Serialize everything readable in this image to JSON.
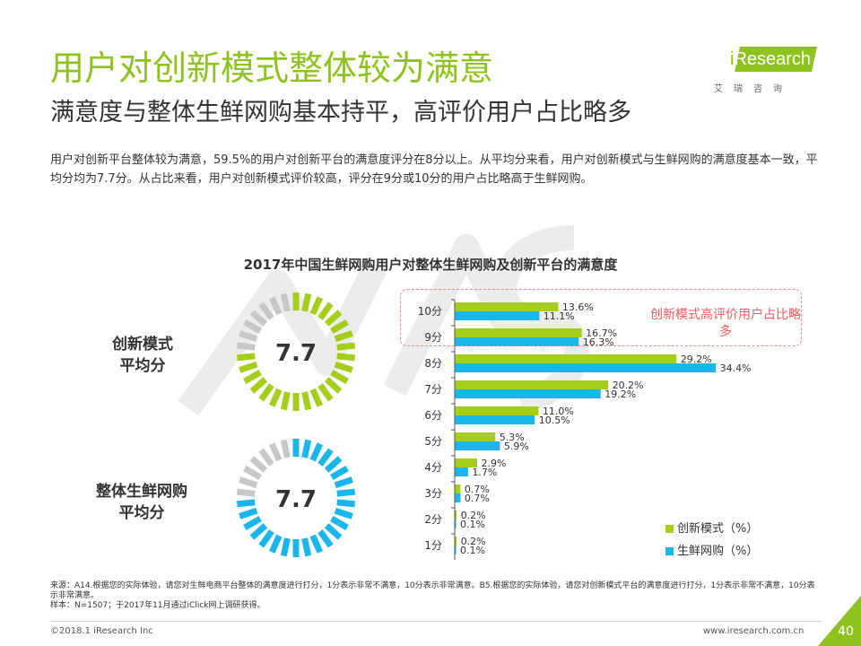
{
  "header": {
    "title": "用户对创新模式整体较为满意",
    "subtitle": "满意度与整体生鲜网购基本持平，高评价用户占比略多",
    "description": "用户对创新平台整体较为满意，59.5%的用户对创新平台的满意度评分在8分以上。从平均分来看，用户对创新模式与生鲜网购的满意度基本一致，平均分均为7.7分。从占比来看，用户对创新模式评价较高，评分在9分或10分的用户占比略高于生鲜网购。"
  },
  "logo": {
    "prefix": "i",
    "name": "Research",
    "tagline": "艾瑞咨询"
  },
  "colors": {
    "brand": "#8dc21f",
    "series1": "#a5cd1c",
    "series2": "#1bb6e9",
    "gauge_grey": "#c8c8c8",
    "callout": "#f15b5b"
  },
  "gauges": [
    {
      "label_line1": "创新模式",
      "label_line2": "平均分",
      "score_text": "7.7",
      "score": 7.7,
      "max": 10,
      "color": "#a5cd1c"
    },
    {
      "label_line1": "整体生鲜网购",
      "label_line2": "平均分",
      "score_text": "7.7",
      "score": 7.7,
      "max": 10,
      "color": "#1bb6e9"
    }
  ],
  "callout": "创新模式高评价用户占比略多",
  "chart_data": {
    "type": "bar",
    "orientation": "horizontal",
    "title": "2017年中国生鲜网购用户对整体生鲜网购及创新平台的满意度",
    "categories": [
      "10分",
      "9分",
      "8分",
      "7分",
      "6分",
      "5分",
      "4分",
      "3分",
      "2分",
      "1分"
    ],
    "series": [
      {
        "name": "创新模式（%）",
        "color": "#a5cd1c",
        "values": [
          13.6,
          16.7,
          29.2,
          20.2,
          11.0,
          5.3,
          2.9,
          0.7,
          0.2,
          0.2
        ],
        "labels": [
          "13.6%",
          "16.7%",
          "29.2%",
          "20.2%",
          "11.0%",
          "5.3%",
          "2.9%",
          "0.7%",
          "0.2%",
          "0.2%"
        ]
      },
      {
        "name": "生鲜网购（%）",
        "color": "#1bb6e9",
        "values": [
          11.1,
          16.3,
          34.4,
          19.2,
          10.5,
          5.9,
          1.7,
          0.7,
          0.1,
          0.1
        ],
        "labels": [
          "11.1%",
          "16.3%",
          "34.4%",
          "19.2%",
          "10.5%",
          "5.9%",
          "1.7%",
          "0.7%",
          "0.1%",
          "0.1%"
        ]
      }
    ],
    "legend_position": "bottom-right",
    "grid": false
  },
  "footer": {
    "source": "来源：A14.根据您的实际体验，请您对生鲜电商平台整体的满意度进行打分，1分表示非常不满意，10分表示非常满意。B5.根据您的实际体验，请您对创新模式平台的满意度进行打分，1分表示非常不满意，10分表示非常满意。",
    "sample": "样本：N=1507；于2017年11月通过iClick网上调研获得。",
    "copyright": "©2018.1 iResearch Inc",
    "site": "www.iresearch.com.cn",
    "page": "40"
  }
}
